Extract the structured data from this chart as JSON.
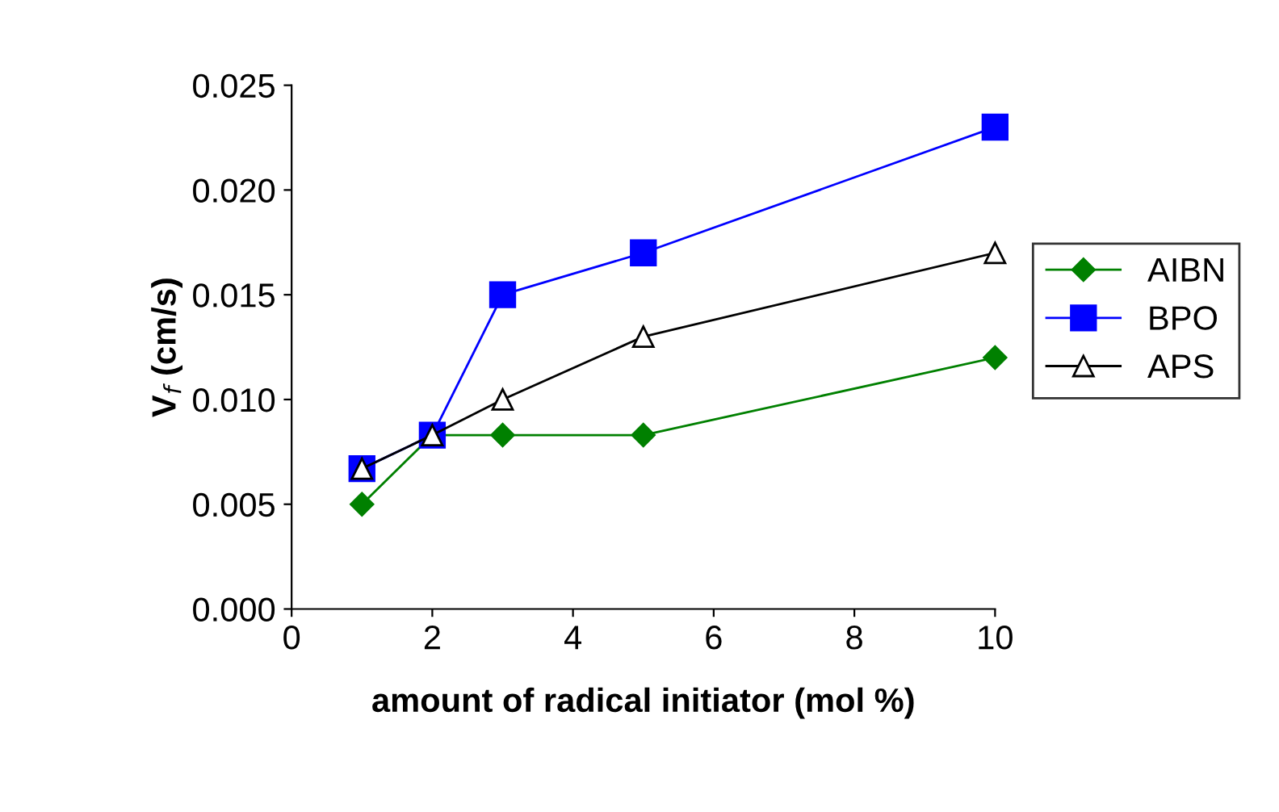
{
  "chart_data": {
    "type": "line",
    "xlabel": "amount of radical initiator (mol %)",
    "ylabel": "V$_{f}$ (cm/s)",
    "xlim": [
      0,
      10
    ],
    "xticks": [
      0,
      2,
      4,
      6,
      8,
      10
    ],
    "ylim": [
      0,
      0.025
    ],
    "yticks": [
      {
        "value": 0,
        "label": "0.000"
      },
      {
        "value": 0.005,
        "label": "0.005"
      },
      {
        "value": 0.01,
        "label": "0.010"
      },
      {
        "value": 0.015,
        "label": "0.015"
      },
      {
        "value": 0.02,
        "label": "0.020"
      },
      {
        "value": 0.025,
        "label": "0.025"
      }
    ],
    "grid": false,
    "legend": "right",
    "line_style": "solid",
    "series": [
      {
        "name": "AIBN",
        "color": "#008000",
        "marker": "diamond",
        "x": [
          1,
          2,
          3,
          5,
          10
        ],
        "values": [
          0.005,
          0.0083,
          0.0083,
          0.0083,
          0.012
        ]
      },
      {
        "name": "BPO",
        "color": "#0000ff",
        "marker": "square",
        "x": [
          1,
          2,
          3,
          5,
          10
        ],
        "values": [
          0.0067,
          0.0083,
          0.015,
          0.017,
          0.023
        ]
      },
      {
        "name": "APS",
        "color": "#000000",
        "marker": "triangle",
        "x": [
          1,
          2,
          3,
          5,
          10
        ],
        "values": [
          0.0067,
          0.0083,
          0.01,
          0.013,
          0.017
        ]
      }
    ]
  }
}
